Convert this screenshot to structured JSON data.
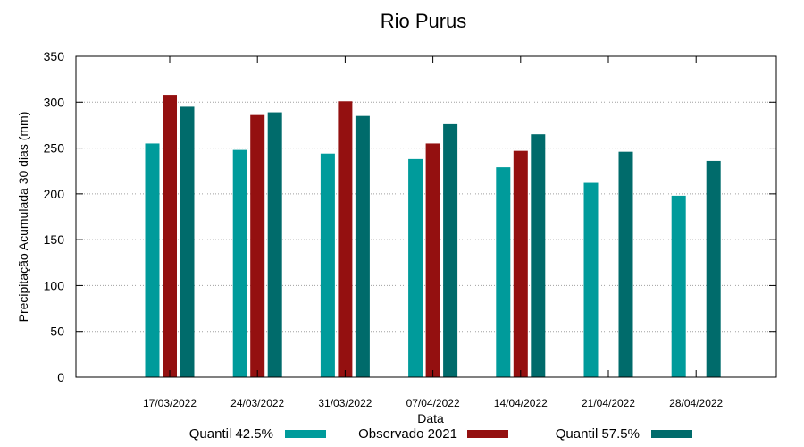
{
  "chart_data": {
    "type": "bar",
    "title": "Rio Purus",
    "xlabel": "Data",
    "ylabel": "Precipitação Acumulada 30 dias (mm)",
    "ylim": [
      0,
      350
    ],
    "yticks": [
      0,
      50,
      100,
      150,
      200,
      250,
      300,
      350
    ],
    "grid": true,
    "legend_position": "bottom",
    "categories": [
      "17/03/2022",
      "24/03/2022",
      "31/03/2022",
      "07/04/2022",
      "14/04/2022",
      "21/04/2022",
      "28/04/2022"
    ],
    "series": [
      {
        "name": "Quantil 42.5%",
        "color": "#009b9b",
        "values": [
          255,
          248,
          244,
          238,
          229,
          212,
          198
        ]
      },
      {
        "name": "Observado 2021",
        "color": "#941010",
        "values": [
          308,
          286,
          301,
          255,
          247,
          null,
          null
        ]
      },
      {
        "name": "Quantil 57.5%",
        "color": "#006b6b",
        "values": [
          295,
          289,
          285,
          276,
          265,
          246,
          236
        ]
      }
    ]
  }
}
